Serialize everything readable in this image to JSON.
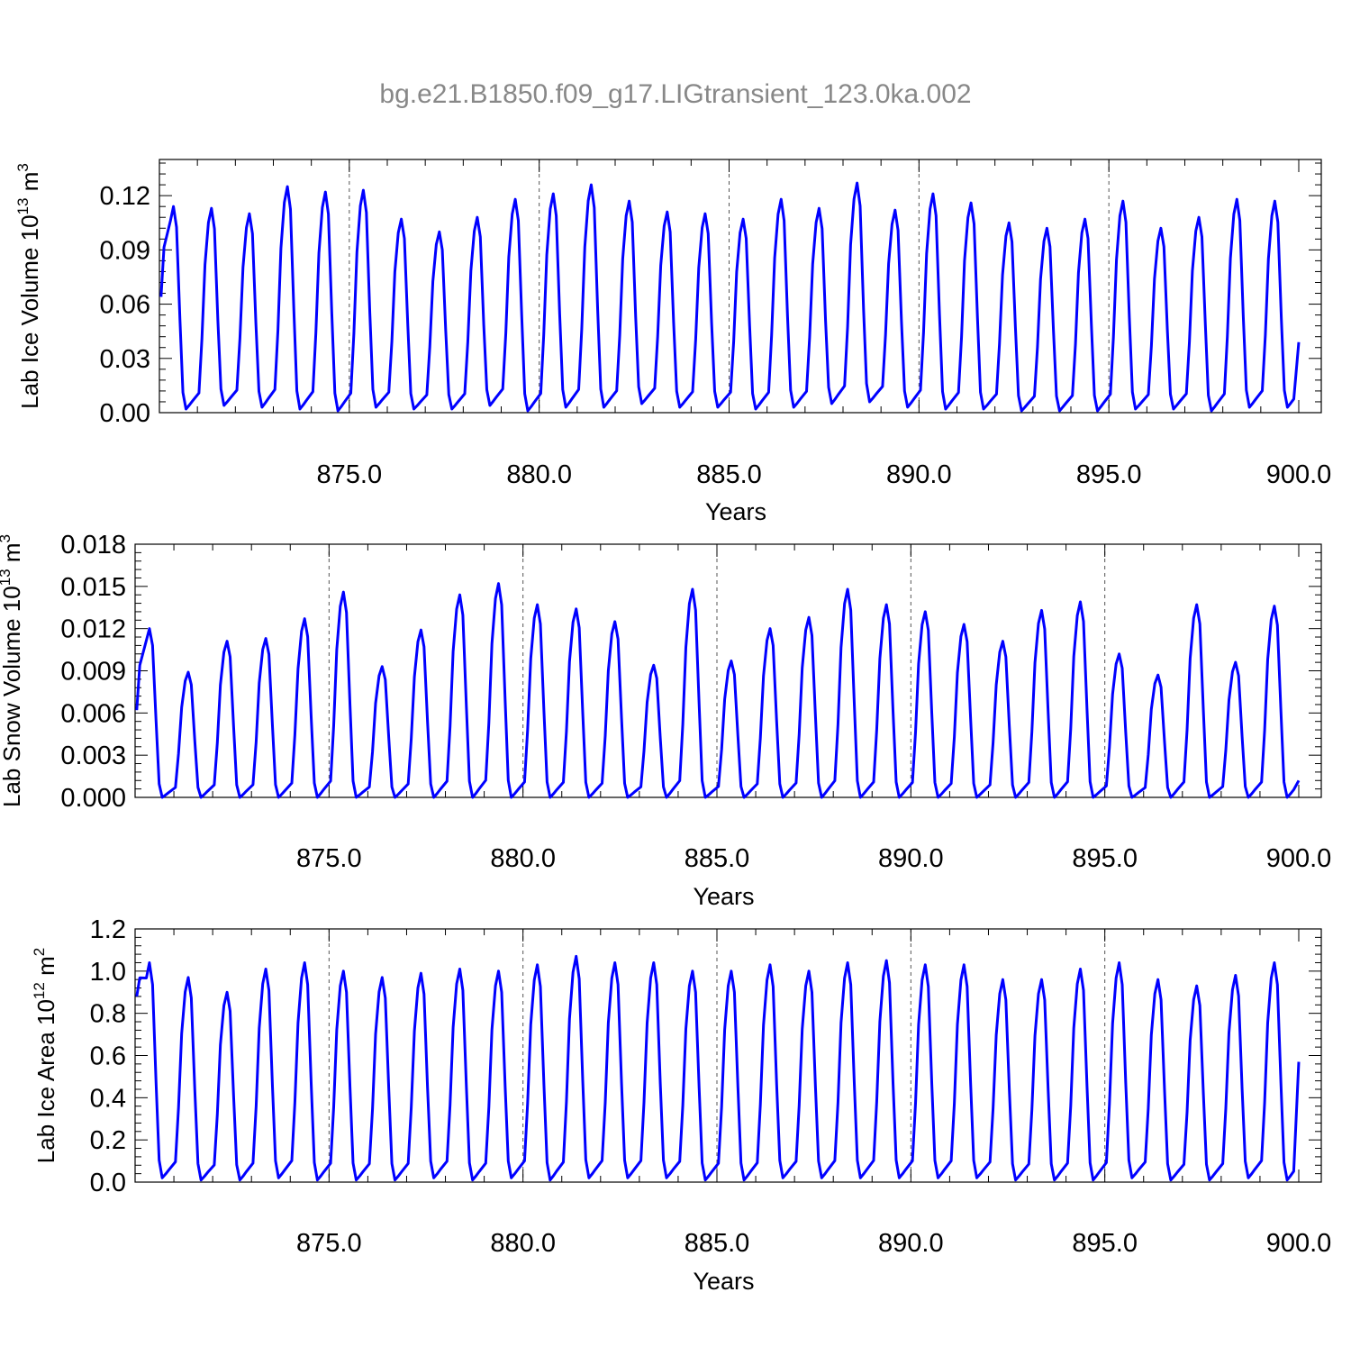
{
  "title": "bg.e21.B1850.f09_g17.LIGtransient_123.0ka.002",
  "colors": {
    "series": "#0000ff",
    "axis": "#000000",
    "title": "#888888",
    "grid": "#555555"
  },
  "chart_data": [
    {
      "type": "line",
      "ylabel": "Lab Ice Volume 10",
      "ylabel_exp": "13",
      "ylabel_unit": " m",
      "ylabel_unit_exp": "3",
      "xlabel": "Years",
      "xlim": [
        870.0,
        900.0
      ],
      "ylim": [
        0.0,
        0.14
      ],
      "xticks": [
        "875.0",
        "880.0",
        "885.0",
        "890.0",
        "895.0",
        "900.0"
      ],
      "yticks": [
        "0.00",
        "0.03",
        "0.06",
        "0.09",
        "0.12"
      ],
      "grid": "vertical dashed at 875, 880, 885, 890, 895",
      "peaks": [
        0.114,
        0.113,
        0.11,
        0.125,
        0.122,
        0.123,
        0.107,
        0.1,
        0.108,
        0.118,
        0.121,
        0.126,
        0.117,
        0.111,
        0.11,
        0.107,
        0.118,
        0.113,
        0.127,
        0.112,
        0.121,
        0.116,
        0.105,
        0.102,
        0.107,
        0.117,
        0.102,
        0.108,
        0.118,
        0.117
      ],
      "troughs": [
        0.002,
        0.004,
        0.003,
        0.002,
        0.001,
        0.003,
        0.002,
        0.002,
        0.004,
        0.001,
        0.003,
        0.003,
        0.005,
        0.003,
        0.003,
        0.002,
        0.003,
        0.005,
        0.006,
        0.003,
        0.002,
        0.002,
        0.001,
        0.001,
        0.001,
        0.002,
        0.002,
        0.001,
        0.003,
        0.003
      ],
      "start_value": 0.064,
      "end_value": 0.039
    },
    {
      "type": "line",
      "ylabel": "Lab Snow Volume 10",
      "ylabel_exp": "13",
      "ylabel_unit": " m",
      "ylabel_unit_exp": "3",
      "xlabel": "Years",
      "xlim": [
        870.0,
        900.0
      ],
      "ylim": [
        0.0,
        0.018
      ],
      "xticks": [
        "875.0",
        "880.0",
        "885.0",
        "890.0",
        "895.0",
        "900.0"
      ],
      "yticks": [
        "0.000",
        "0.003",
        "0.006",
        "0.009",
        "0.012",
        "0.015",
        "0.018"
      ],
      "grid": "vertical dashed at 875, 880, 885, 890, 895",
      "peaks": [
        0.012,
        0.0089,
        0.0111,
        0.0113,
        0.0127,
        0.0146,
        0.0093,
        0.0119,
        0.0144,
        0.0152,
        0.0137,
        0.0134,
        0.0125,
        0.0094,
        0.0148,
        0.0097,
        0.012,
        0.0128,
        0.0148,
        0.0137,
        0.0132,
        0.0123,
        0.0111,
        0.0133,
        0.0139,
        0.0102,
        0.0087,
        0.0137,
        0.0096,
        0.0136
      ],
      "troughs": [
        0.0,
        0.0,
        0.0,
        0.0,
        0.0,
        0.0,
        0.0,
        0.0,
        0.0,
        0.0,
        0.0,
        0.0,
        0.0,
        0.0,
        0.0,
        0.0,
        0.0,
        0.0,
        0.0,
        0.0,
        0.0,
        0.0,
        0.0,
        0.0,
        0.0,
        0.0,
        0.0,
        0.0,
        0.0,
        0.0
      ],
      "start_value": 0.0062,
      "end_value": 0.0012
    },
    {
      "type": "line",
      "ylabel": "Lab Ice Area 10",
      "ylabel_exp": "12",
      "ylabel_unit": " m",
      "ylabel_unit_exp": "2",
      "xlabel": "Years",
      "xlim": [
        870.0,
        900.0
      ],
      "ylim": [
        0.0,
        1.2
      ],
      "xticks": [
        "875.0",
        "880.0",
        "885.0",
        "890.0",
        "895.0",
        "900.0"
      ],
      "yticks": [
        "0.0",
        "0.2",
        "0.4",
        "0.6",
        "0.8",
        "1.0",
        "1.2"
      ],
      "grid": "vertical dashed at 875, 880, 885, 890, 895",
      "peaks": [
        1.04,
        0.97,
        0.9,
        1.01,
        1.04,
        1.0,
        0.97,
        0.99,
        1.01,
        1.0,
        1.03,
        1.07,
        1.04,
        1.04,
        1.0,
        1.0,
        1.03,
        1.0,
        1.04,
        1.05,
        1.03,
        1.03,
        0.96,
        0.96,
        1.01,
        1.04,
        0.96,
        0.93,
        0.98,
        1.04
      ],
      "troughs": [
        0.02,
        0.01,
        0.01,
        0.02,
        0.01,
        0.01,
        0.01,
        0.02,
        0.01,
        0.02,
        0.01,
        0.02,
        0.02,
        0.02,
        0.01,
        0.01,
        0.02,
        0.02,
        0.02,
        0.02,
        0.02,
        0.02,
        0.01,
        0.01,
        0.01,
        0.02,
        0.01,
        0.01,
        0.02,
        0.01
      ],
      "start_value": 0.88,
      "end_value": 0.57
    }
  ]
}
